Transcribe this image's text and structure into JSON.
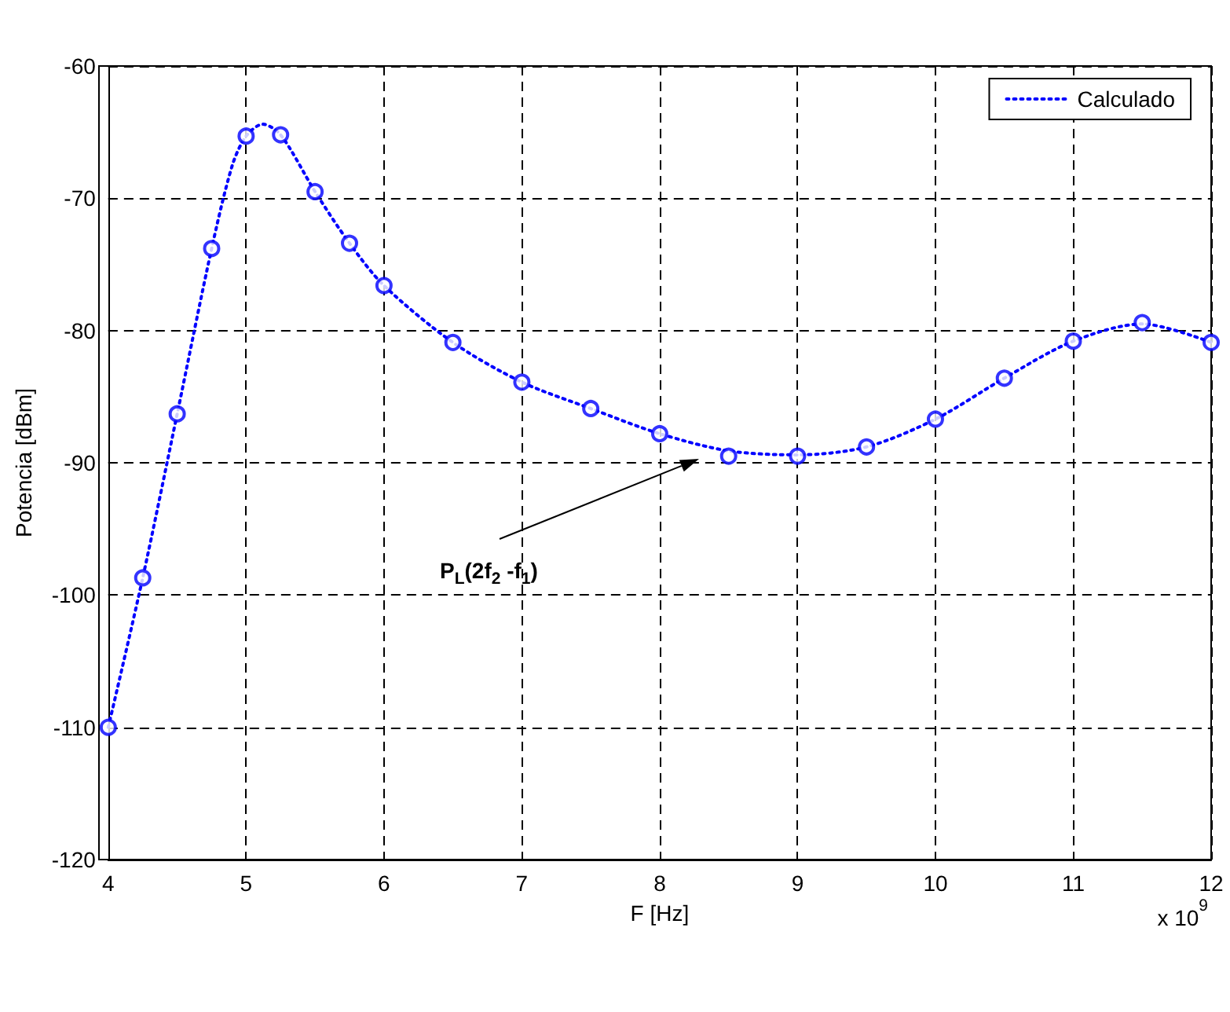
{
  "chart_data": {
    "type": "line",
    "xlabel": "F [Hz]",
    "ylabel": "Potencia [dBm]",
    "xlim": [
      4,
      12
    ],
    "xticks": [
      4,
      5,
      6,
      7,
      8,
      9,
      10,
      11,
      12
    ],
    "ylim": [
      -120,
      -60
    ],
    "yticks": [
      -120,
      -110,
      -100,
      -90,
      -80,
      -70,
      -60
    ],
    "grid": true,
    "legend": "top right",
    "series": [
      {
        "name": "Calculado",
        "color": "#0000ff",
        "line_style": "dotted",
        "marker": "none",
        "x": [
          4,
          4.25,
          4.5,
          4.75,
          4.9,
          5,
          5.12,
          5.25,
          5.5,
          5.75,
          6,
          6.5,
          7,
          7.5,
          8,
          8.5,
          9,
          9.5,
          10,
          10.5,
          11,
          11.5,
          12
        ],
        "values": [
          -110,
          -98.7,
          -86.3,
          -73.8,
          -67.5,
          -65.3,
          -64.4,
          -65.2,
          -69.5,
          -73.4,
          -76.6,
          -80.9,
          -83.9,
          -85.9,
          -87.8,
          -89.1,
          -89.4,
          -88.8,
          -86.7,
          -83.6,
          -80.8,
          -79.5,
          -80.9
        ]
      },
      {
        "type": "scatter",
        "color": "#0000ff",
        "marker": "circle",
        "x": [
          4,
          4.25,
          4.5,
          4.75,
          5,
          5.25,
          5.5,
          5.75,
          6,
          6.5,
          7,
          7.5,
          8,
          8.5,
          9,
          9.5,
          10,
          10.5,
          11,
          11.5,
          12
        ],
        "values": [
          -110,
          -98.7,
          -86.3,
          -73.8,
          -65.3,
          -65.2,
          -69.5,
          -73.4,
          -76.6,
          -80.9,
          -83.9,
          -85.9,
          -87.8,
          -89.5,
          -89.5,
          -88.8,
          -86.7,
          -83.6,
          -80.8,
          -79.4,
          -80.9
        ]
      }
    ],
    "annotations": [
      "P$_{L}$(2f$_{2}$ -f$_{1}$)",
      "x 10$^{9}$"
    ]
  }
}
